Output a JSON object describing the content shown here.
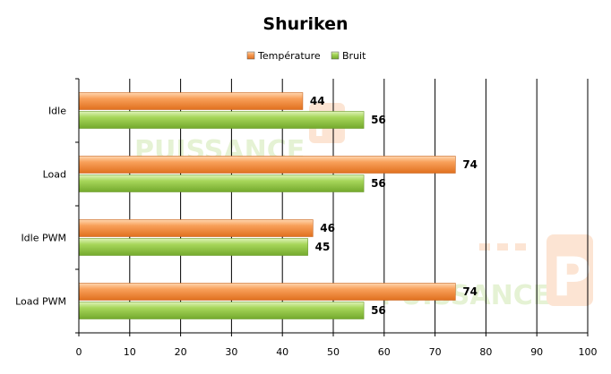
{
  "chart_data": {
    "type": "bar",
    "orientation": "horizontal",
    "title": "Shuriken",
    "categories": [
      "Idle",
      "Load",
      "Idle PWM",
      "Load PWM"
    ],
    "series": [
      {
        "name": "Température",
        "values": [
          44,
          74,
          46,
          74
        ],
        "color": "#f28a3a"
      },
      {
        "name": "Bruit",
        "values": [
          56,
          56,
          45,
          56
        ],
        "color": "#8cc63f"
      }
    ],
    "xlim": [
      0,
      100
    ],
    "xticks": [
      "0",
      "10",
      "20",
      "30",
      "40",
      "50",
      "60",
      "70",
      "80",
      "90",
      "100"
    ],
    "grid": "vertical",
    "legend": "top-center",
    "xlabel": "",
    "ylabel": ""
  },
  "watermark": {
    "text": "PUISSANCE",
    "logo_letters": "PC"
  },
  "colors": {
    "gridline": "#000000",
    "axis": "#000000",
    "background": "#ffffff"
  }
}
